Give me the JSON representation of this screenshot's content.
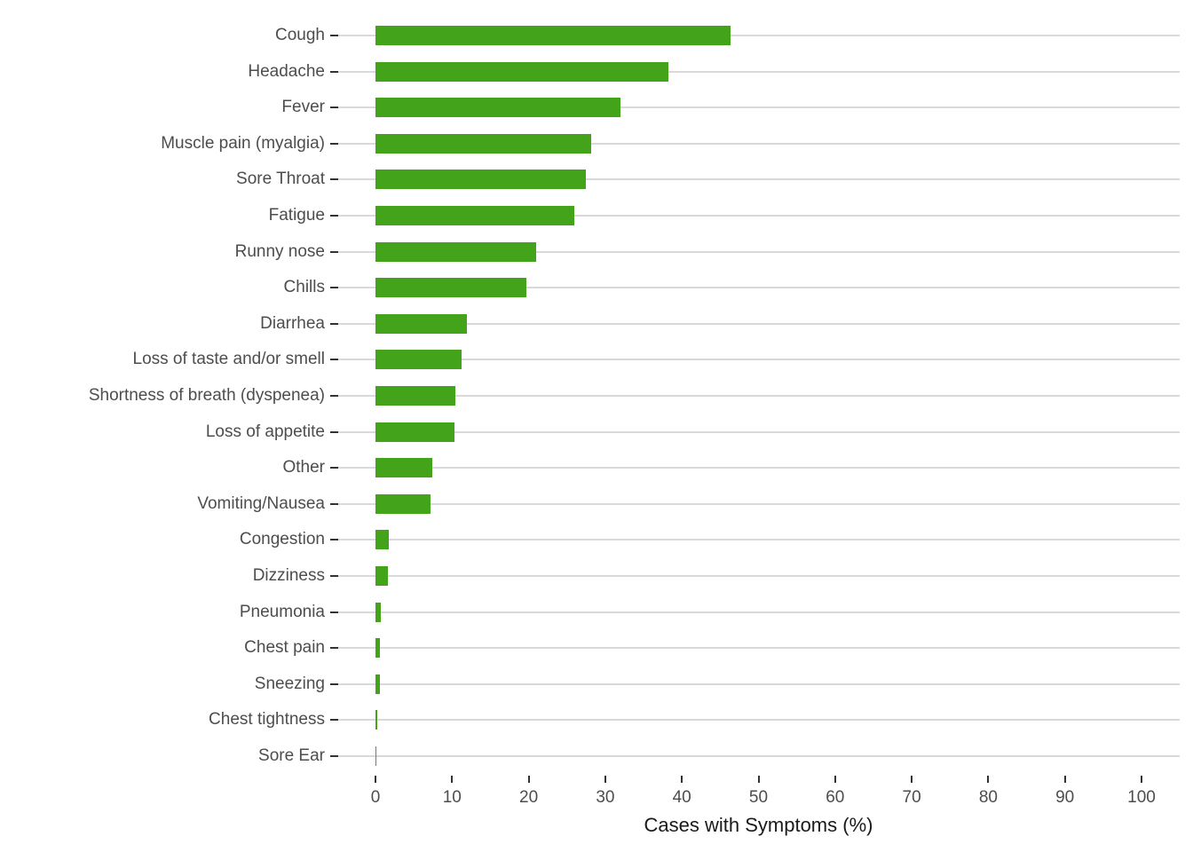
{
  "chart_data": {
    "type": "bar",
    "orientation": "horizontal",
    "title": "",
    "xlabel": "Cases with Symptoms (%)",
    "ylabel": "",
    "xlim": [
      -5,
      105
    ],
    "x_ticks": [
      0,
      10,
      20,
      30,
      40,
      50,
      60,
      70,
      80,
      90,
      100
    ],
    "grid": "horizontal-category-lines-only",
    "legend": "none",
    "categories": [
      "Cough",
      "Headache",
      "Fever",
      "Muscle pain (myalgia)",
      "Sore Throat",
      "Fatigue",
      "Runny nose",
      "Chills",
      "Diarrhea",
      "Loss of taste and/or smell",
      "Shortness of breath (dyspenea)",
      "Loss of appetite",
      "Other",
      "Vomiting/Nausea",
      "Congestion",
      "Dizziness",
      "Pneumonia",
      "Chest pain",
      "Sneezing",
      "Chest tightness",
      "Sore Ear"
    ],
    "values": [
      46.3,
      38.2,
      32.0,
      28.2,
      27.5,
      25.9,
      21.0,
      19.7,
      11.9,
      11.2,
      10.4,
      10.3,
      7.4,
      7.2,
      1.7,
      1.6,
      0.7,
      0.6,
      0.55,
      0.25,
      0.12
    ],
    "colors": {
      "bar": "#43a41c",
      "gridline": "#d9d9d9",
      "tick": "#333333",
      "axis_text": "#4d4d4d",
      "axis_title": "#1a1a1a",
      "background": "#ffffff"
    }
  }
}
